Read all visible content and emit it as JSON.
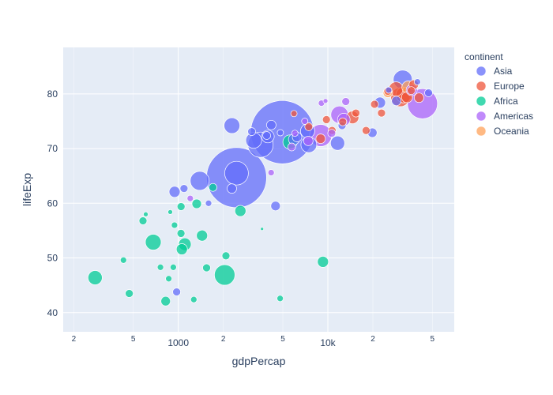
{
  "chart_data": {
    "type": "scatter",
    "subtype": "bubble",
    "title": "",
    "xlabel": "gdpPercap",
    "ylabel": "lifeExp",
    "x_scale": "log",
    "xlim": [
      170,
      70000
    ],
    "ylim": [
      36.5,
      88.5
    ],
    "x_major_ticks": [
      {
        "value": 1000,
        "label": "1000"
      },
      {
        "value": 10000,
        "label": "10k"
      }
    ],
    "x_minor_ticks": [
      {
        "value": 200,
        "label": "2"
      },
      {
        "value": 500,
        "label": "5"
      },
      {
        "value": 2000,
        "label": "2"
      },
      {
        "value": 5000,
        "label": "5"
      },
      {
        "value": 20000,
        "label": "2"
      },
      {
        "value": 50000,
        "label": "5"
      }
    ],
    "y_ticks": [
      40,
      50,
      60,
      70,
      80
    ],
    "grid": true,
    "legend": {
      "title": "continent",
      "position": "right"
    },
    "series": [
      {
        "name": "Asia",
        "color": "#636efa",
        "points": [
          {
            "x": 975,
            "y": 43.8,
            "r": 5
          },
          {
            "x": 1391,
            "y": 64.1,
            "r": 12
          },
          {
            "x": 2452,
            "y": 65.5,
            "r": 15
          },
          {
            "x": 1091,
            "y": 62.7,
            "r": 5
          },
          {
            "x": 944,
            "y": 62.1,
            "r": 7
          },
          {
            "x": 1593,
            "y": 60,
            "r": 4
          },
          {
            "x": 2281,
            "y": 62.7,
            "r": 6
          },
          {
            "x": 2283,
            "y": 74.2,
            "r": 10
          },
          {
            "x": 3548,
            "y": 70.7,
            "r": 16
          },
          {
            "x": 3191,
            "y": 71.5,
            "r": 10
          },
          {
            "x": 4959,
            "y": 73,
            "r": 40
          },
          {
            "x": 2452,
            "y": 64.7,
            "r": 38
          },
          {
            "x": 4471,
            "y": 59.5,
            "r": 6
          },
          {
            "x": 3095,
            "y": 73.1,
            "r": 5
          },
          {
            "x": 3970,
            "y": 72.2,
            "r": 8
          },
          {
            "x": 4184,
            "y": 74.3,
            "r": 6
          },
          {
            "x": 5937,
            "y": 71.7,
            "r": 7
          },
          {
            "x": 6224,
            "y": 72.1,
            "r": 6
          },
          {
            "x": 7458,
            "y": 70.7,
            "r": 10
          },
          {
            "x": 7320,
            "y": 73.2,
            "r": 9
          },
          {
            "x": 11606,
            "y": 71,
            "r": 9
          },
          {
            "x": 12452,
            "y": 74.2,
            "r": 5
          },
          {
            "x": 19828,
            "y": 72.9,
            "r": 6
          },
          {
            "x": 22316,
            "y": 78.4,
            "r": 7
          },
          {
            "x": 28718,
            "y": 78.7,
            "r": 6
          },
          {
            "x": 31656,
            "y": 82.6,
            "r": 12
          },
          {
            "x": 39724,
            "y": 82.2,
            "r": 4
          },
          {
            "x": 47143,
            "y": 80.2,
            "r": 5
          },
          {
            "x": 25523,
            "y": 80.7,
            "r": 4
          },
          {
            "x": 4812,
            "y": 72.9,
            "r": 4
          },
          {
            "x": 3900,
            "y": 72.4,
            "r": 5
          }
        ]
      },
      {
        "name": "Europe",
        "color": "#ef553b",
        "points": [
          {
            "x": 5937,
            "y": 76.4,
            "r": 4
          },
          {
            "x": 7446,
            "y": 74,
            "r": 5
          },
          {
            "x": 8948,
            "y": 71.8,
            "r": 6
          },
          {
            "x": 9786,
            "y": 75.3,
            "r": 5
          },
          {
            "x": 10680,
            "y": 73.3,
            "r": 5
          },
          {
            "x": 12570,
            "y": 74.9,
            "r": 5
          },
          {
            "x": 14619,
            "y": 75.7,
            "r": 8
          },
          {
            "x": 15390,
            "y": 76.5,
            "r": 5
          },
          {
            "x": 18009,
            "y": 73.3,
            "r": 5
          },
          {
            "x": 20510,
            "y": 78.1,
            "r": 5
          },
          {
            "x": 22833,
            "y": 76.5,
            "r": 5
          },
          {
            "x": 25185,
            "y": 80.5,
            "r": 5
          },
          {
            "x": 28570,
            "y": 80.9,
            "r": 9
          },
          {
            "x": 30470,
            "y": 79.4,
            "r": 12
          },
          {
            "x": 32170,
            "y": 79.8,
            "r": 10
          },
          {
            "x": 33860,
            "y": 79.4,
            "r": 7
          },
          {
            "x": 36126,
            "y": 80.6,
            "r": 5
          },
          {
            "x": 37506,
            "y": 81.7,
            "r": 6
          },
          {
            "x": 40676,
            "y": 79.3,
            "r": 6
          }
        ]
      },
      {
        "name": "Africa",
        "color": "#00cc96",
        "points": [
          {
            "x": 278,
            "y": 46.4,
            "r": 9
          },
          {
            "x": 430,
            "y": 49.6,
            "r": 4
          },
          {
            "x": 470,
            "y": 43.5,
            "r": 5
          },
          {
            "x": 581,
            "y": 56.8,
            "r": 5
          },
          {
            "x": 606,
            "y": 58,
            "r": 3
          },
          {
            "x": 680,
            "y": 52.9,
            "r": 10
          },
          {
            "x": 760,
            "y": 48.3,
            "r": 4
          },
          {
            "x": 823,
            "y": 42.1,
            "r": 6
          },
          {
            "x": 863,
            "y": 46.2,
            "r": 4
          },
          {
            "x": 883,
            "y": 58.4,
            "r": 3
          },
          {
            "x": 926,
            "y": 48.3,
            "r": 4
          },
          {
            "x": 943,
            "y": 56,
            "r": 4
          },
          {
            "x": 1042,
            "y": 54.5,
            "r": 5
          },
          {
            "x": 1056,
            "y": 51.6,
            "r": 7
          },
          {
            "x": 1107,
            "y": 52.5,
            "r": 8
          },
          {
            "x": 1044,
            "y": 59.4,
            "r": 5
          },
          {
            "x": 1270,
            "y": 42.4,
            "r": 4
          },
          {
            "x": 1328,
            "y": 59.9,
            "r": 6
          },
          {
            "x": 1441,
            "y": 54.1,
            "r": 7
          },
          {
            "x": 1545,
            "y": 48.2,
            "r": 5
          },
          {
            "x": 1704,
            "y": 62.9,
            "r": 5
          },
          {
            "x": 2042,
            "y": 46.9,
            "r": 13
          },
          {
            "x": 2082,
            "y": 50.4,
            "r": 5
          },
          {
            "x": 2602,
            "y": 58.6,
            "r": 7
          },
          {
            "x": 4797,
            "y": 42.6,
            "r": 4
          },
          {
            "x": 5581,
            "y": 71.2,
            "r": 9
          },
          {
            "x": 9270,
            "y": 49.3,
            "r": 7
          },
          {
            "x": 3632,
            "y": 55.3,
            "r": 2
          }
        ]
      },
      {
        "name": "Americas",
        "color": "#ab63fa",
        "points": [
          {
            "x": 4173,
            "y": 65.6,
            "r": 4
          },
          {
            "x": 5728,
            "y": 70.3,
            "r": 5
          },
          {
            "x": 6025,
            "y": 72.8,
            "r": 4
          },
          {
            "x": 7006,
            "y": 75,
            "r": 4
          },
          {
            "x": 7408,
            "y": 71.4,
            "r": 6
          },
          {
            "x": 8948,
            "y": 72.4,
            "r": 14
          },
          {
            "x": 9066,
            "y": 78.3,
            "r": 4
          },
          {
            "x": 9645,
            "y": 78.7,
            "r": 3
          },
          {
            "x": 10611,
            "y": 72.8,
            "r": 5
          },
          {
            "x": 11977,
            "y": 76.2,
            "r": 11
          },
          {
            "x": 12779,
            "y": 75.3,
            "r": 8
          },
          {
            "x": 13172,
            "y": 78.6,
            "r": 5
          },
          {
            "x": 36319,
            "y": 80.7,
            "r": 7
          },
          {
            "x": 42952,
            "y": 78.2,
            "r": 19
          },
          {
            "x": 1202,
            "y": 60.9,
            "r": 4
          }
        ]
      },
      {
        "name": "Oceania",
        "color": "#ffa15a",
        "points": [
          {
            "x": 25185,
            "y": 80.2,
            "r": 6
          },
          {
            "x": 34435,
            "y": 81.2,
            "r": 8
          }
        ]
      }
    ]
  }
}
